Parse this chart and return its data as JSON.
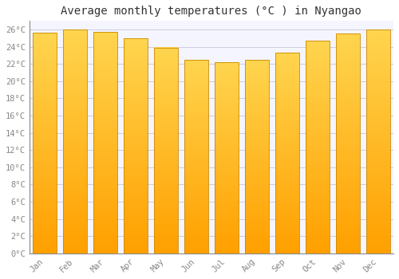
{
  "title": "Average monthly temperatures (°C ) in Nyangao",
  "months": [
    "Jan",
    "Feb",
    "Mar",
    "Apr",
    "May",
    "Jun",
    "Jul",
    "Aug",
    "Sep",
    "Oct",
    "Nov",
    "Dec"
  ],
  "values": [
    25.6,
    26.0,
    25.7,
    25.0,
    23.9,
    22.5,
    22.2,
    22.5,
    23.3,
    24.7,
    25.5,
    26.0
  ],
  "bar_color_center": "#FFD54F",
  "bar_color_edge": "#FFA000",
  "background_color": "#FFFFFF",
  "plot_bg_color": "#F5F5FF",
  "grid_color": "#CCCCDD",
  "title_fontsize": 10,
  "tick_fontsize": 7.5,
  "ylim": [
    0,
    27
  ],
  "ytick_step": 2,
  "figsize": [
    5.0,
    3.5
  ],
  "dpi": 100
}
